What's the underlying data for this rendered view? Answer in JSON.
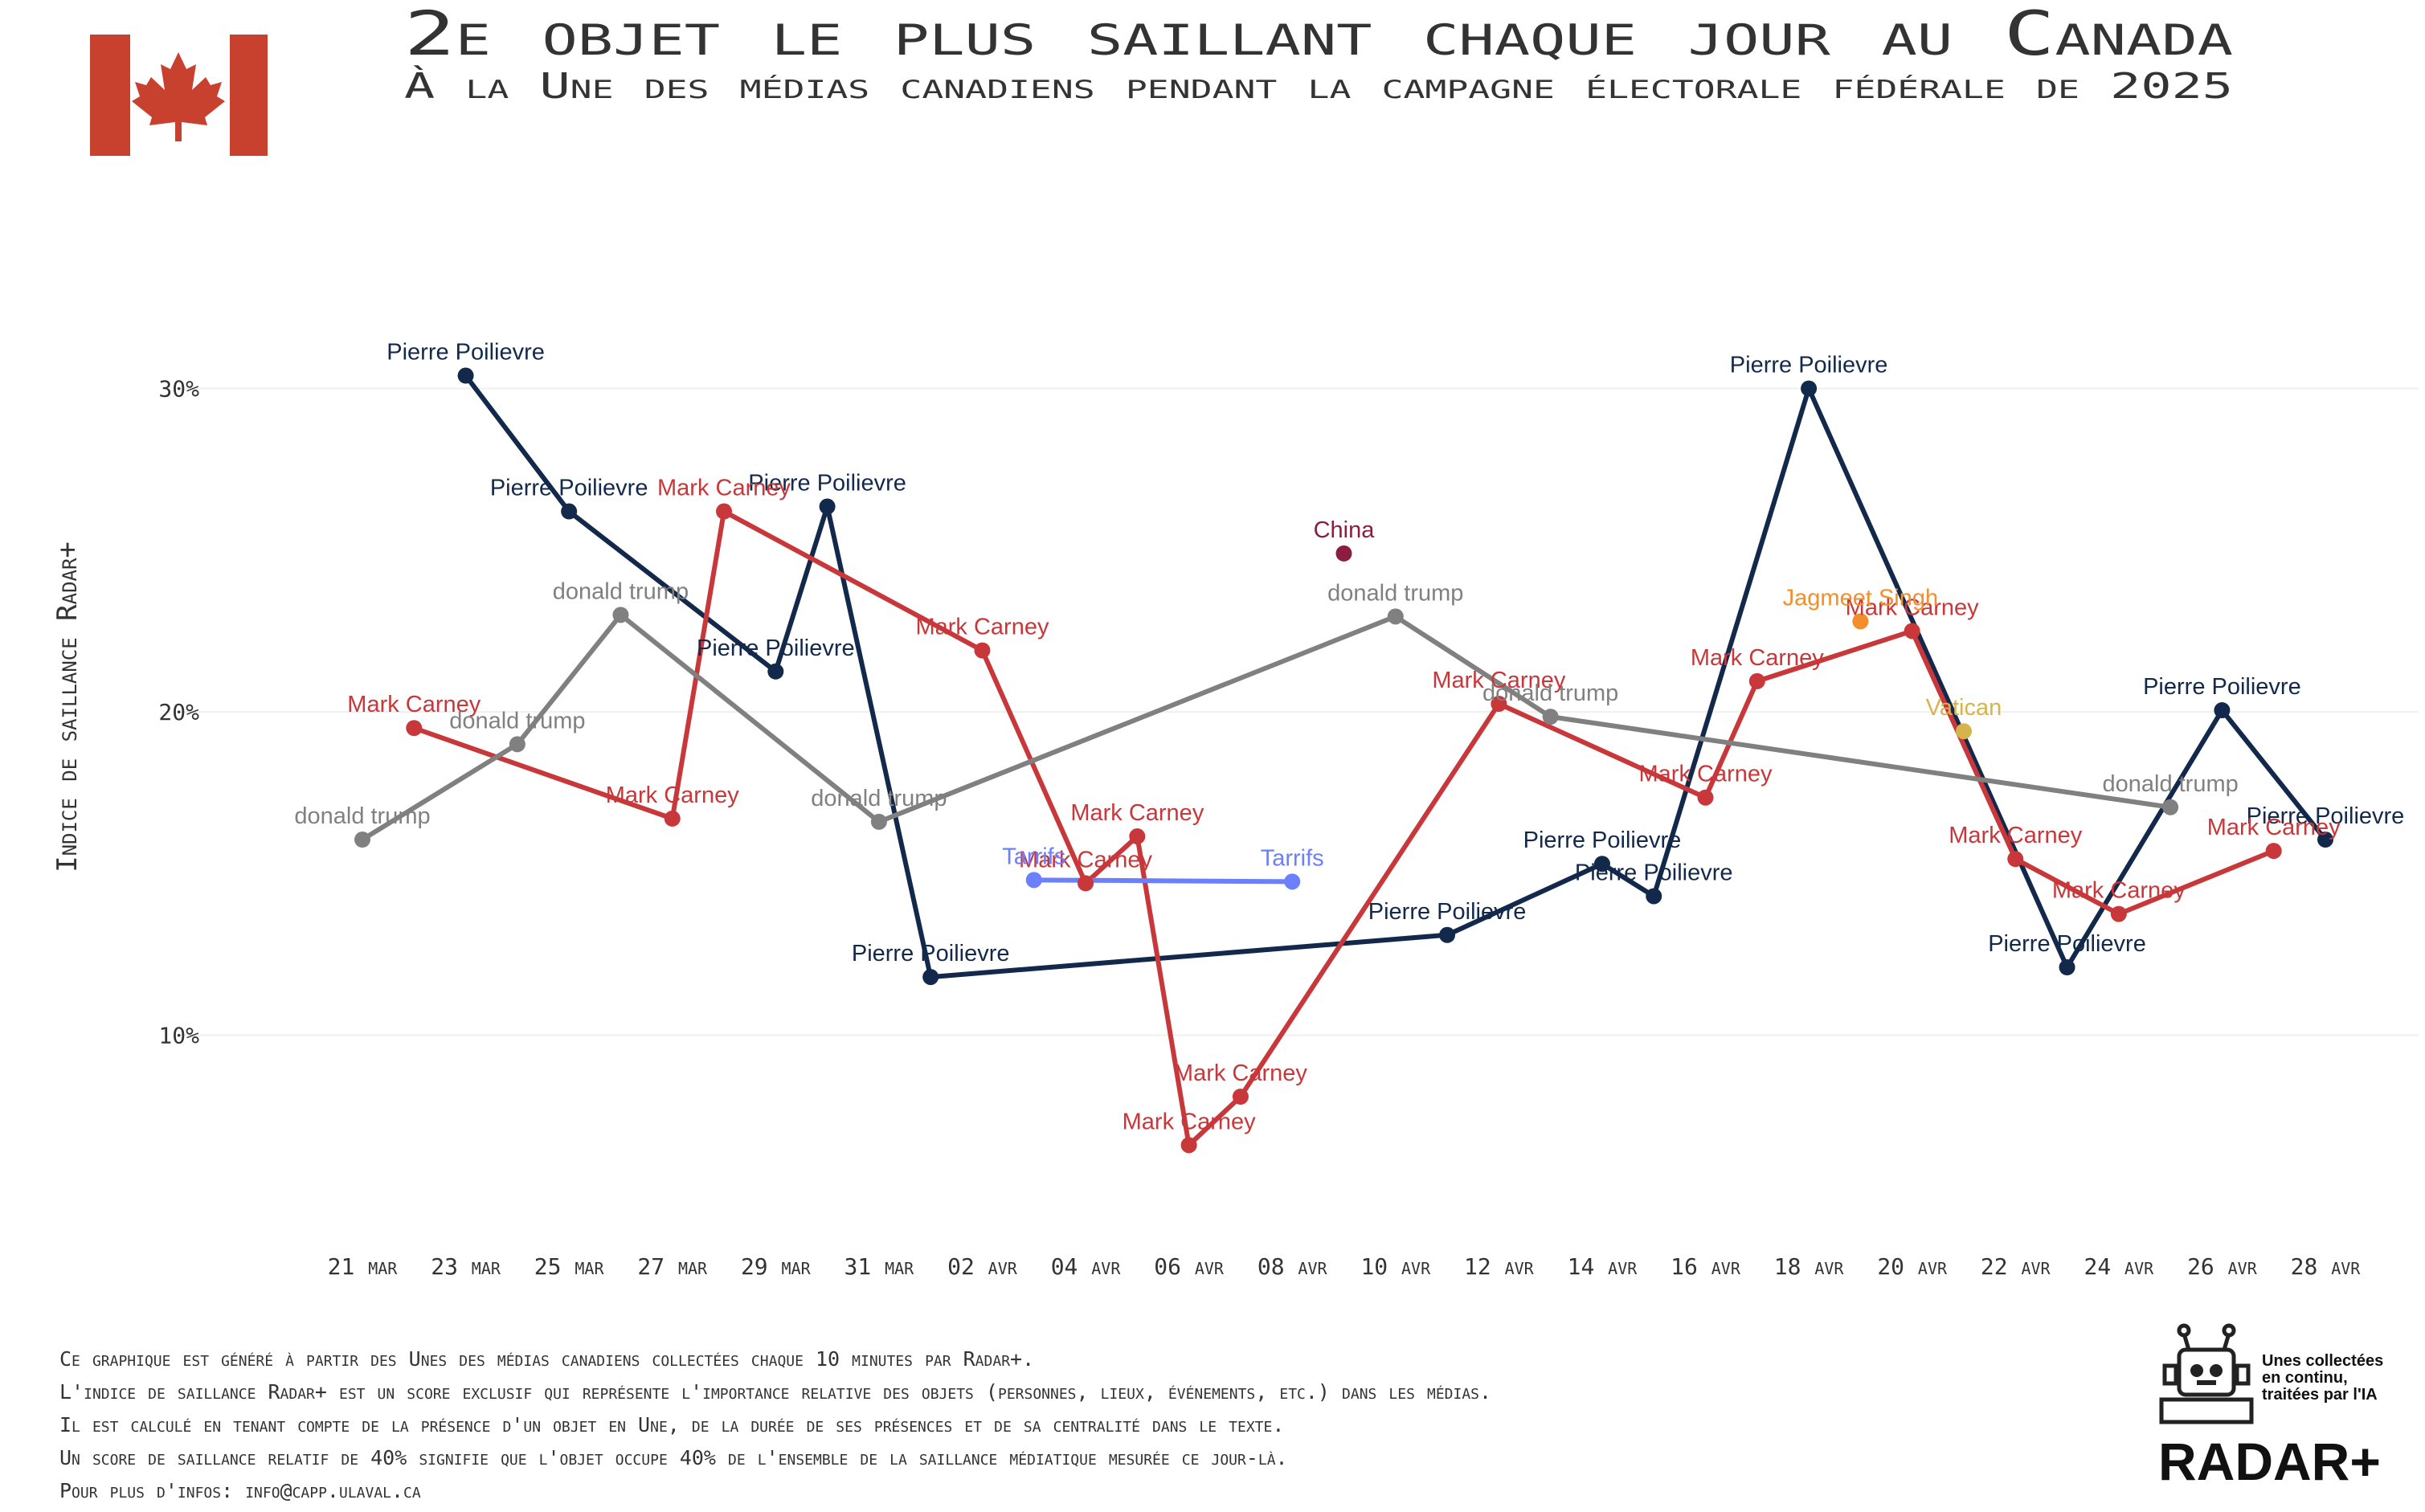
{
  "chart_data": {
    "type": "line",
    "title": "2e objet le plus saillant chaque jour au Canada",
    "subtitle": "À la Une des médias canadiens pendant la campagne électorale fédérale de 2025",
    "y_label": "Indice de saillance Radar+",
    "xlim": [
      "21 mar",
      "28 avr"
    ],
    "xticks": [
      "21 mar",
      "23 mar",
      "25 mar",
      "27 mar",
      "29 mar",
      "31 mar",
      "02 avr",
      "04 avr",
      "06 avr",
      "08 avr",
      "10 avr",
      "12 avr",
      "14 avr",
      "16 avr",
      "18 avr",
      "20 avr",
      "22 avr",
      "24 avr",
      "26 avr",
      "28 avr"
    ],
    "ylim": [
      4,
      32.5
    ],
    "yticks": [
      {
        "value": 10,
        "label": "10%"
      },
      {
        "value": 20,
        "label": "20%"
      },
      {
        "value": 30,
        "label": "30%"
      }
    ],
    "grid": true,
    "series": [
      {
        "name": "Pierre Poilievre",
        "color": "#13294b",
        "x": [
          "23 mar",
          "25 mar",
          "29 mar",
          "30 mar",
          "01 avr",
          "11 avr",
          "14 avr",
          "15 avr",
          "18 avr",
          "23 avr",
          "26 avr",
          "28 avr"
        ],
        "values": [
          30.4,
          26.2,
          21.25,
          26.35,
          11.8,
          13.1,
          15.3,
          14.3,
          30.0,
          12.1,
          20.05,
          16.05
        ]
      },
      {
        "name": "Mark Carney",
        "color": "#c8373a",
        "x": [
          "22 mar",
          "27 mar",
          "28 mar",
          "02 avr",
          "04 avr",
          "05 avr",
          "06 avr",
          "07 avr",
          "12 avr",
          "16 avr",
          "17 avr",
          "20 avr",
          "22 avr",
          "24 avr",
          "27 avr"
        ],
        "values": [
          19.5,
          16.7,
          26.2,
          21.9,
          14.7,
          16.15,
          6.6,
          8.1,
          20.25,
          17.35,
          20.95,
          22.5,
          15.45,
          13.75,
          15.7
        ]
      },
      {
        "name": "donald trump",
        "color": "#808080",
        "x": [
          "21 mar",
          "24 mar",
          "26 mar",
          "31 mar",
          "10 avr",
          "13 avr",
          "25 avr"
        ],
        "values": [
          16.05,
          19.0,
          23.0,
          16.6,
          22.95,
          19.85,
          17.05
        ]
      },
      {
        "name": "Tarrifs",
        "color": "#6b7fff",
        "x": [
          "03 avr",
          "08 avr"
        ],
        "values": [
          14.8,
          14.75
        ]
      },
      {
        "name": "China",
        "color": "#8c1d40",
        "x": [
          "09 avr"
        ],
        "values": [
          24.9
        ]
      },
      {
        "name": "Jagmeet Singh",
        "color": "#f28f2c",
        "x": [
          "19 avr"
        ],
        "values": [
          22.8
        ]
      },
      {
        "name": "Vatican",
        "color": "#d6b44c",
        "x": [
          "21 avr"
        ],
        "values": [
          19.4
        ]
      }
    ]
  },
  "footer": {
    "lines": [
      "Ce graphique est généré à partir des Unes des médias canadiens collectées chaque 10 minutes par Radar+.",
      "L'indice de saillance Radar+ est un score exclusif qui représente l'importance relative des objets (personnes, lieux, événements, etc.) dans les médias.",
      "Il est calculé en tenant compte de la présence d'un objet en Une, de la durée de ses présences et de sa centralité dans le texte.",
      "Un score de saillance relatif de 40% signifie que l'objet occupe 40% de l'ensemble de la saillance médiatique mesurée ce jour-là.",
      "Pour plus d'infos: info@capp.ulaval.ca"
    ]
  },
  "logo": {
    "tagline": [
      "Unes collectées",
      "en continu,",
      "traitées par l'IA"
    ],
    "name": "RADAR+"
  }
}
